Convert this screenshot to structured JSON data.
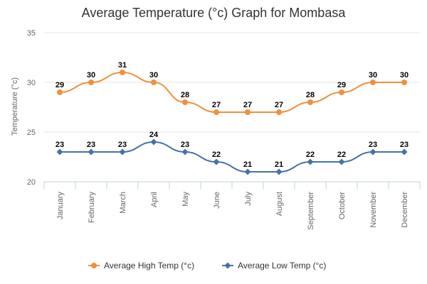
{
  "chart_data": {
    "type": "line",
    "title": "Average Temperature (°c) Graph for Mombasa",
    "ylabel": "Temperature (°c)",
    "xlabel": "",
    "ylim": [
      20,
      35
    ],
    "yticks": [
      20,
      25,
      30,
      35
    ],
    "grid": true,
    "legend_position": "bottom",
    "categories": [
      "January",
      "February",
      "March",
      "April",
      "May",
      "June",
      "July",
      "August",
      "September",
      "October",
      "November",
      "December"
    ],
    "series": [
      {
        "name": "Average High Temp (°c)",
        "color": "#f28f3b",
        "marker": "circle",
        "values": [
          29,
          30,
          31,
          30,
          28,
          27,
          27,
          27,
          28,
          29,
          30,
          30
        ]
      },
      {
        "name": "Average Low Temp (°c)",
        "color": "#4572a7",
        "marker": "diamond",
        "values": [
          23,
          23,
          23,
          24,
          23,
          22,
          21,
          21,
          22,
          22,
          23,
          23
        ]
      }
    ]
  }
}
